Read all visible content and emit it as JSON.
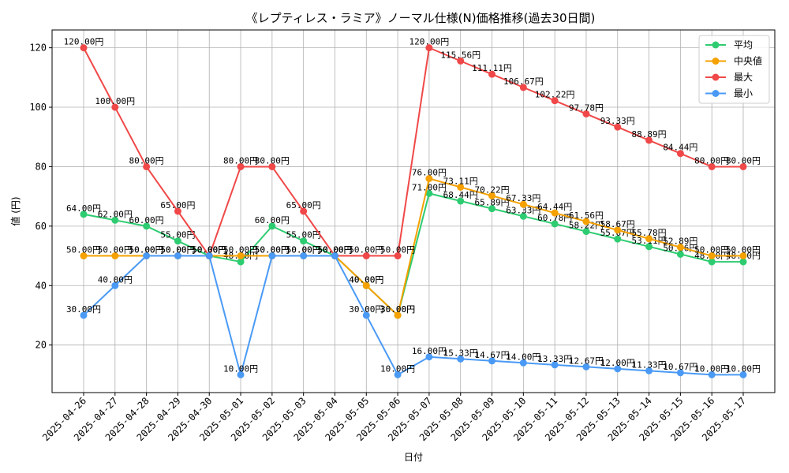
{
  "chart_data": {
    "type": "line",
    "title": "《レプティレス・ラミア》ノーマル仕様(N)価格推移(過去30日間)",
    "xlabel": "日付",
    "ylabel": "値 (円)",
    "ylim": [
      4,
      126
    ],
    "yticks": [
      20,
      40,
      60,
      80,
      100,
      120
    ],
    "grid": true,
    "legend_position": "top-right",
    "label_suffix": "円",
    "categories": [
      "2025-04-26",
      "2025-04-27",
      "2025-04-28",
      "2025-04-29",
      "2025-04-30",
      "2025-05-01",
      "2025-05-02",
      "2025-05-03",
      "2025-05-04",
      "2025-05-05",
      "2025-05-06",
      "2025-05-07",
      "2025-05-08",
      "2025-05-09",
      "2025-05-10",
      "2025-05-11",
      "2025-05-12",
      "2025-05-13",
      "2025-05-14",
      "2025-05-15",
      "2025-05-16",
      "2025-05-17"
    ],
    "series": [
      {
        "name": "平均",
        "color": "#2ecc71",
        "values": [
          64.0,
          62.0,
          60.0,
          55.0,
          50.0,
          48.0,
          60.0,
          55.0,
          50.0,
          40.0,
          30.0,
          71.0,
          68.44,
          65.89,
          63.33,
          60.78,
          58.22,
          55.67,
          53.11,
          50.56,
          48.0,
          48.0
        ]
      },
      {
        "name": "中央値",
        "color": "#f5a100",
        "values": [
          50.0,
          50.0,
          50.0,
          50.0,
          50.0,
          50.0,
          50.0,
          50.0,
          50.0,
          40.0,
          30.0,
          76.0,
          73.11,
          70.22,
          67.33,
          64.44,
          61.56,
          58.67,
          55.78,
          52.89,
          50.0,
          50.0
        ]
      },
      {
        "name": "最大",
        "color": "#f04848",
        "values": [
          120.0,
          100.0,
          80.0,
          65.0,
          50.0,
          80.0,
          80.0,
          65.0,
          50.0,
          50.0,
          50.0,
          120.0,
          115.56,
          111.11,
          106.67,
          102.22,
          97.78,
          93.33,
          88.89,
          84.44,
          80.0,
          80.0
        ]
      },
      {
        "name": "最小",
        "color": "#4a9af5",
        "values": [
          30.0,
          40.0,
          50.0,
          50.0,
          50.0,
          10.0,
          50.0,
          50.0,
          50.0,
          30.0,
          10.0,
          16.0,
          15.33,
          14.67,
          14.0,
          13.33,
          12.67,
          12.0,
          11.33,
          10.67,
          10.0,
          10.0
        ]
      }
    ]
  }
}
